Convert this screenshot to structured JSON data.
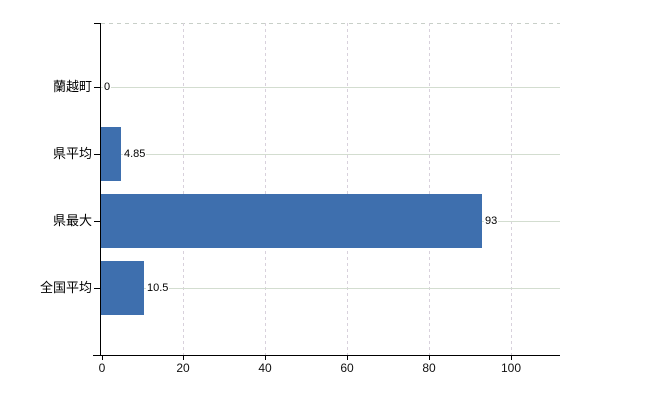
{
  "chart_data": {
    "type": "bar",
    "orientation": "horizontal",
    "title": "",
    "xlabel": "",
    "ylabel": "",
    "categories": [
      "蘭越町",
      "県平均",
      "県最大",
      "全国平均"
    ],
    "values": [
      0,
      4.85,
      93,
      10.5
    ],
    "value_labels": [
      "0",
      "4.85",
      "93",
      "10.5"
    ],
    "x_ticks": [
      0,
      20,
      40,
      60,
      80,
      100
    ],
    "x_tick_labels": [
      "0",
      "20",
      "40",
      "60",
      "80",
      "100"
    ],
    "xlim": [
      0,
      112
    ],
    "grid": true,
    "legend": "none",
    "colors": {
      "bar": "#3e6fae",
      "grid_horizontal": "#d3ddd0",
      "grid_vertical": "#d8d1dc",
      "axis": "#000000",
      "plot_top_border": "#c8cfc8",
      "text": "#000000",
      "background": "#ffffff"
    }
  }
}
